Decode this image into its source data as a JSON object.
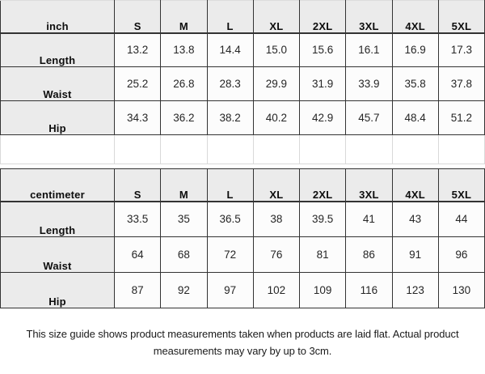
{
  "tables": [
    {
      "unit_label": "inch",
      "sizes": [
        "S",
        "M",
        "L",
        "XL",
        "2XL",
        "3XL",
        "4XL",
        "5XL"
      ],
      "rows": [
        {
          "label": "Length",
          "values": [
            "13.2",
            "13.8",
            "14.4",
            "15.0",
            "15.6",
            "16.1",
            "16.9",
            "17.3"
          ]
        },
        {
          "label": "Waist",
          "values": [
            "25.2",
            "26.8",
            "28.3",
            "29.9",
            "31.9",
            "33.9",
            "35.8",
            "37.8"
          ]
        },
        {
          "label": "Hip",
          "values": [
            "34.3",
            "36.2",
            "38.2",
            "40.2",
            "42.9",
            "45.7",
            "48.4",
            "51.2"
          ]
        }
      ]
    },
    {
      "unit_label": "centimeter",
      "sizes": [
        "S",
        "M",
        "L",
        "XL",
        "2XL",
        "3XL",
        "4XL",
        "5XL"
      ],
      "rows": [
        {
          "label": "Length",
          "values": [
            "33.5",
            "35",
            "36.5",
            "38",
            "39.5",
            "41",
            "43",
            "44"
          ]
        },
        {
          "label": "Waist",
          "values": [
            "64",
            "68",
            "72",
            "76",
            "81",
            "86",
            "91",
            "96"
          ]
        },
        {
          "label": "Hip",
          "values": [
            "87",
            "92",
            "97",
            "102",
            "109",
            "116",
            "123",
            "130"
          ]
        }
      ]
    }
  ],
  "footer": {
    "line1": "This size guide shows product measurements taken when products are laid flat. Actual product",
    "line2": "measurements may vary by up to 3cm."
  },
  "colors": {
    "header_bg": "#ebebeb",
    "cell_bg": "#fcfcfc",
    "dark_border": "#333333",
    "light_border": "#d9d9d9",
    "text": "#262626"
  }
}
